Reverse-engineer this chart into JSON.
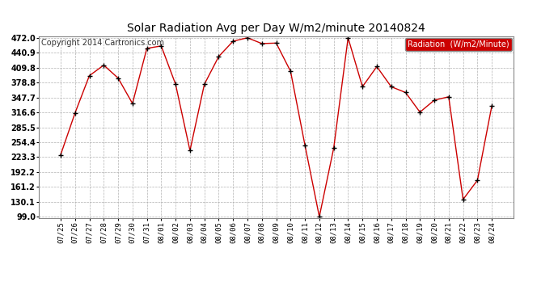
{
  "title": "Solar Radiation Avg per Day W/m2/minute 20140824",
  "copyright": "Copyright 2014 Cartronics.com",
  "legend_label": "Radiation  (W/m2/Minute)",
  "dates": [
    "07/25",
    "07/26",
    "07/27",
    "07/28",
    "07/29",
    "07/30",
    "07/31",
    "08/01",
    "08/02",
    "08/03",
    "08/04",
    "08/05",
    "08/06",
    "08/07",
    "08/08",
    "08/09",
    "08/10",
    "08/11",
    "08/12",
    "08/13",
    "08/14",
    "08/15",
    "08/16",
    "08/17",
    "08/18",
    "08/19",
    "08/20",
    "08/21",
    "08/22",
    "08/23",
    "08/24"
  ],
  "values": [
    228,
    315,
    393,
    415,
    388,
    335,
    450,
    455,
    375,
    237,
    375,
    433,
    465,
    472,
    460,
    461,
    402,
    248,
    99,
    242,
    472,
    370,
    412,
    370,
    358,
    317,
    342,
    349,
    135,
    175,
    330
  ],
  "line_color": "#cc0000",
  "marker_color": "#000000",
  "bg_color": "#ffffff",
  "grid_color": "#aaaaaa",
  "title_fontsize": 10,
  "copyright_fontsize": 7,
  "legend_bg": "#cc0000",
  "legend_text_color": "#ffffff",
  "ymin": 99.0,
  "ymax": 472.0,
  "yticks": [
    99.0,
    130.1,
    161.2,
    192.2,
    223.3,
    254.4,
    285.5,
    316.6,
    347.7,
    378.8,
    409.8,
    440.9,
    472.0
  ]
}
